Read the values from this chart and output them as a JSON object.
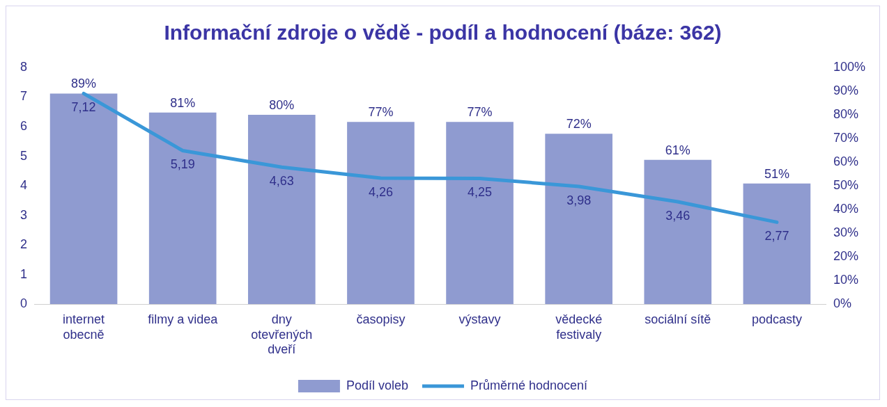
{
  "chart_data": {
    "type": "bar",
    "title": "Informační zdroje o vědě - podíl a hodnocení (báze: 362)",
    "categories": [
      "internet obecně",
      "filmy a videa",
      "dny otevřených dveří",
      "časopisy",
      "výstavy",
      "vědecké festivaly",
      "sociální sítě",
      "podcasty"
    ],
    "series": [
      {
        "name": "Podíl voleb",
        "axis": "y2",
        "color": "#8f9bd0",
        "values": [
          89,
          81,
          80,
          77,
          77,
          72,
          61,
          51
        ],
        "value_labels": [
          "89%",
          "81%",
          "80%",
          "77%",
          "77%",
          "72%",
          "61%",
          "51%"
        ]
      },
      {
        "name": "Průměrné hodnocení",
        "type": "line",
        "color": "#3a97d8",
        "values": [
          7.12,
          5.19,
          4.63,
          4.26,
          4.25,
          3.98,
          3.46,
          2.77
        ],
        "value_labels": [
          "7,12",
          "5,19",
          "4,63",
          "4,26",
          "4,25",
          "3,98",
          "3,46",
          "2,77"
        ]
      }
    ],
    "ylim": [
      0,
      8
    ],
    "yticks": [
      0,
      1,
      2,
      3,
      4,
      5,
      6,
      7,
      8
    ],
    "y2lim": [
      0,
      100
    ],
    "y2ticks": [
      {
        "value": 0,
        "label": "0%"
      },
      {
        "value": 10,
        "label": "10%"
      },
      {
        "value": 20,
        "label": "20%"
      },
      {
        "value": 30,
        "label": "30%"
      },
      {
        "value": 40,
        "label": "40%"
      },
      {
        "value": 50,
        "label": "50%"
      },
      {
        "value": 60,
        "label": "60%"
      },
      {
        "value": 70,
        "label": "70%"
      },
      {
        "value": 80,
        "label": "80%"
      },
      {
        "value": 90,
        "label": "90%"
      },
      {
        "value": 100,
        "label": "100%"
      }
    ],
    "grid": false,
    "legend": "bottom"
  }
}
